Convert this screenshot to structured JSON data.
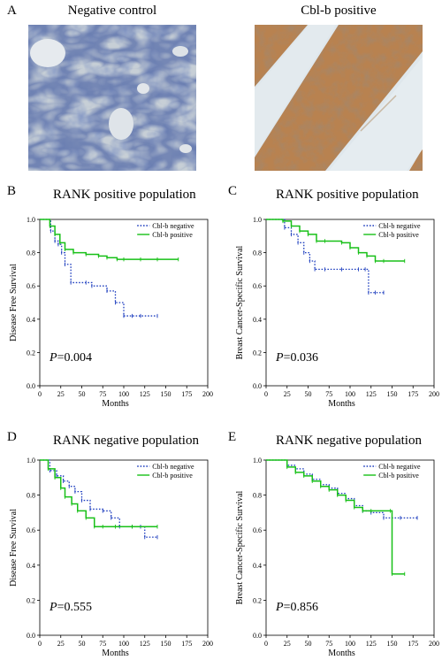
{
  "panel_a": {
    "letter": "A",
    "left_title": "Negative control",
    "right_title": "Cbl-b positive"
  },
  "chart_data": [
    {
      "letter": "B",
      "type": "line",
      "title": "RANK positive population",
      "xlabel": "Months",
      "ylabel": "Disease Free Survival",
      "xlim": [
        0,
        200
      ],
      "ylim": [
        0,
        1.0
      ],
      "xticks": [
        "0",
        "25",
        "50",
        "75",
        "100",
        "125",
        "150",
        "175",
        "200"
      ],
      "yticks": [
        "0.0",
        "0.2",
        "0.4",
        "0.6",
        "0.8",
        "1.0"
      ],
      "legend": "top-right",
      "pvalue_prefix": "P",
      "pvalue": "=0.004",
      "series": [
        {
          "name": "Cbl-b negative",
          "color": "#1f3fbf",
          "style": "dotted",
          "x": [
            0,
            10,
            13,
            18,
            22,
            26,
            30,
            37,
            55,
            62,
            80,
            90,
            100,
            110,
            120,
            140
          ],
          "y": [
            1.0,
            1.0,
            0.93,
            0.87,
            0.85,
            0.8,
            0.73,
            0.62,
            0.62,
            0.6,
            0.57,
            0.5,
            0.42,
            0.42,
            0.42,
            0.42
          ]
        },
        {
          "name": "Cbl-b positive",
          "color": "#18c018",
          "style": "solid",
          "x": [
            0,
            8,
            12,
            18,
            24,
            30,
            40,
            55,
            70,
            80,
            92,
            100,
            120,
            140,
            165
          ],
          "y": [
            1.0,
            1.0,
            0.96,
            0.91,
            0.86,
            0.82,
            0.8,
            0.79,
            0.78,
            0.77,
            0.76,
            0.76,
            0.76,
            0.76,
            0.76
          ]
        }
      ]
    },
    {
      "letter": "C",
      "type": "line",
      "title": "RANK positive population",
      "xlabel": "Months",
      "ylabel": "Breast Cancer-Specific Survival",
      "xlim": [
        0,
        200
      ],
      "ylim": [
        0,
        1.0
      ],
      "xticks": [
        "0",
        "25",
        "50",
        "75",
        "100",
        "125",
        "150",
        "175",
        "200"
      ],
      "yticks": [
        "0.0",
        "0.2",
        "0.4",
        "0.6",
        "0.8",
        "1.0"
      ],
      "legend": "top-right",
      "pvalue_prefix": "P",
      "pvalue": "=0.036",
      "series": [
        {
          "name": "Cbl-b negative",
          "color": "#1f3fbf",
          "style": "dotted",
          "x": [
            0,
            15,
            22,
            30,
            38,
            45,
            52,
            58,
            70,
            90,
            110,
            118,
            122,
            130,
            140
          ],
          "y": [
            1.0,
            1.0,
            0.95,
            0.91,
            0.86,
            0.8,
            0.75,
            0.7,
            0.7,
            0.7,
            0.7,
            0.7,
            0.56,
            0.56,
            0.56
          ]
        },
        {
          "name": "Cbl-b positive",
          "color": "#18c018",
          "style": "solid",
          "x": [
            0,
            10,
            20,
            30,
            40,
            50,
            60,
            70,
            90,
            100,
            110,
            120,
            130,
            140,
            165
          ],
          "y": [
            1.0,
            1.0,
            0.99,
            0.96,
            0.93,
            0.91,
            0.87,
            0.87,
            0.86,
            0.83,
            0.8,
            0.78,
            0.75,
            0.75,
            0.75
          ]
        }
      ]
    },
    {
      "letter": "D",
      "type": "line",
      "title": "RANK negative population",
      "xlabel": "Months",
      "ylabel": "Disease Free Survival",
      "xlim": [
        0,
        200
      ],
      "ylim": [
        0,
        1.0
      ],
      "xticks": [
        "0",
        "25",
        "50",
        "75",
        "100",
        "125",
        "150",
        "175",
        "200"
      ],
      "yticks": [
        "0.0",
        "0.2",
        "0.4",
        "0.6",
        "0.8",
        "1.0"
      ],
      "legend": "top-right",
      "pvalue_prefix": "P",
      "pvalue": "=0.555",
      "series": [
        {
          "name": "Cbl-b negative",
          "color": "#1f3fbf",
          "style": "dotted",
          "x": [
            0,
            6,
            12,
            20,
            28,
            35,
            42,
            50,
            60,
            75,
            85,
            95,
            110,
            120,
            125,
            140
          ],
          "y": [
            1.0,
            1.0,
            0.94,
            0.91,
            0.88,
            0.85,
            0.82,
            0.77,
            0.72,
            0.71,
            0.67,
            0.62,
            0.62,
            0.62,
            0.56,
            0.56
          ]
        },
        {
          "name": "Cbl-b positive",
          "color": "#18c018",
          "style": "solid",
          "x": [
            0,
            5,
            10,
            18,
            25,
            30,
            38,
            45,
            55,
            65,
            75,
            90,
            110,
            140
          ],
          "y": [
            1.0,
            1.0,
            0.95,
            0.9,
            0.84,
            0.79,
            0.75,
            0.71,
            0.67,
            0.62,
            0.62,
            0.62,
            0.62,
            0.62
          ]
        }
      ]
    },
    {
      "letter": "E",
      "type": "line",
      "title": "RANK negative population",
      "xlabel": "Months",
      "ylabel": "Breast Cancer-Specific Survival",
      "xlim": [
        0,
        200
      ],
      "ylim": [
        0,
        1.0
      ],
      "xticks": [
        "0",
        "25",
        "50",
        "75",
        "100",
        "125",
        "150",
        "175",
        "200"
      ],
      "yticks": [
        "0.0",
        "0.2",
        "0.4",
        "0.6",
        "0.8",
        "1.0"
      ],
      "legend": "top-right",
      "pvalue_prefix": "P",
      "pvalue": "=0.856",
      "series": [
        {
          "name": "Cbl-b negative",
          "color": "#1f3fbf",
          "style": "dotted",
          "x": [
            0,
            15,
            25,
            35,
            45,
            55,
            65,
            75,
            85,
            95,
            105,
            115,
            125,
            140,
            160,
            180
          ],
          "y": [
            1.0,
            1.0,
            0.97,
            0.95,
            0.92,
            0.89,
            0.86,
            0.84,
            0.81,
            0.78,
            0.74,
            0.71,
            0.7,
            0.67,
            0.67,
            0.67
          ]
        },
        {
          "name": "Cbl-b positive",
          "color": "#18c018",
          "style": "solid",
          "x": [
            0,
            15,
            25,
            35,
            45,
            55,
            65,
            75,
            85,
            95,
            105,
            115,
            125,
            148,
            150,
            165
          ],
          "y": [
            1.0,
            1.0,
            0.96,
            0.93,
            0.91,
            0.88,
            0.85,
            0.83,
            0.8,
            0.77,
            0.73,
            0.71,
            0.71,
            0.71,
            0.35,
            0.35
          ]
        }
      ]
    }
  ]
}
